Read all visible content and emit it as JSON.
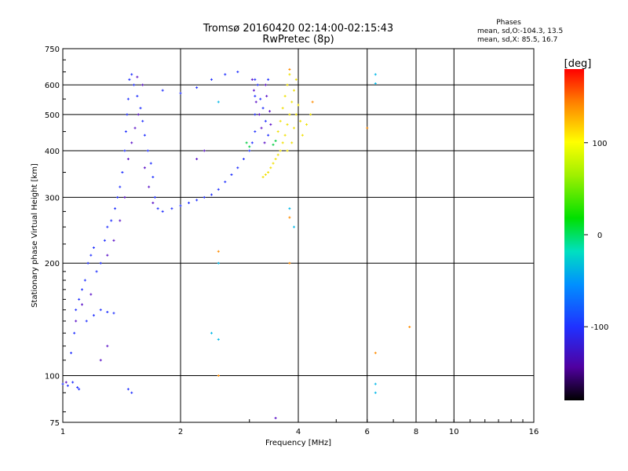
{
  "chart_data": {
    "type": "scatter",
    "title": "Tromsø 20160420 02:14:00-02:15:43",
    "subtitle": "RwPretec (8p)",
    "xlabel": "Frequency [MHz]",
    "ylabel": "Stationary phase Virtual Height [km]",
    "x_scale": "log",
    "y_scale": "log",
    "xlim": [
      1,
      16
    ],
    "ylim": [
      75,
      750
    ],
    "x_ticks": [
      "1",
      "2",
      "4",
      "6",
      "8",
      "10",
      "16"
    ],
    "y_ticks": [
      "75",
      "100",
      "200",
      "300",
      "400",
      "500",
      "600",
      "750"
    ],
    "grid": true,
    "phases_box": {
      "title": "Phases",
      "line_o": "mean, sd,O:-104.3, 13.5",
      "line_x": "mean, sd,X:  85.5, 16.7"
    },
    "colorbar": {
      "label": "[deg]",
      "ticks": [
        "100",
        "0",
        "-100"
      ],
      "range": [
        -180,
        180
      ]
    },
    "series": [
      {
        "phase_deg": -110,
        "color": "#2030ff",
        "points": [
          [
            1.0,
            95
          ],
          [
            1.03,
            94
          ],
          [
            1.06,
            96
          ],
          [
            1.09,
            93
          ],
          [
            1.1,
            92
          ],
          [
            1.05,
            115
          ],
          [
            1.07,
            130
          ],
          [
            1.08,
            150
          ],
          [
            1.1,
            160
          ],
          [
            1.12,
            170
          ],
          [
            1.14,
            180
          ],
          [
            1.16,
            200
          ],
          [
            1.18,
            210
          ],
          [
            1.2,
            220
          ],
          [
            1.15,
            140
          ],
          [
            1.2,
            145
          ],
          [
            1.25,
            150
          ],
          [
            1.3,
            148
          ],
          [
            1.35,
            147
          ],
          [
            1.22,
            190
          ],
          [
            1.25,
            200
          ],
          [
            1.28,
            230
          ],
          [
            1.3,
            250
          ],
          [
            1.33,
            260
          ],
          [
            1.36,
            280
          ],
          [
            1.38,
            300
          ],
          [
            1.4,
            320
          ],
          [
            1.42,
            350
          ],
          [
            1.44,
            400
          ],
          [
            1.45,
            450
          ],
          [
            1.46,
            500
          ],
          [
            1.47,
            550
          ],
          [
            1.48,
            620
          ],
          [
            1.5,
            640
          ],
          [
            1.52,
            600
          ],
          [
            1.55,
            560
          ],
          [
            1.58,
            520
          ],
          [
            1.6,
            480
          ],
          [
            1.62,
            440
          ],
          [
            1.65,
            400
          ],
          [
            1.68,
            370
          ],
          [
            1.7,
            340
          ],
          [
            1.72,
            300
          ],
          [
            1.75,
            280
          ],
          [
            1.8,
            275
          ],
          [
            1.9,
            280
          ],
          [
            2.0,
            285
          ],
          [
            2.1,
            290
          ],
          [
            2.2,
            295
          ],
          [
            2.3,
            300
          ],
          [
            2.4,
            305
          ],
          [
            2.5,
            315
          ],
          [
            2.6,
            330
          ],
          [
            2.7,
            345
          ],
          [
            2.8,
            360
          ],
          [
            2.9,
            380
          ],
          [
            3.0,
            400
          ],
          [
            3.05,
            420
          ],
          [
            3.1,
            450
          ],
          [
            3.1,
            500
          ],
          [
            3.1,
            560
          ],
          [
            3.1,
            620
          ],
          [
            3.15,
            600
          ],
          [
            3.2,
            550
          ],
          [
            3.25,
            520
          ],
          [
            3.3,
            480
          ],
          [
            3.35,
            440
          ],
          [
            3.35,
            620
          ],
          [
            1.8,
            580
          ],
          [
            2.0,
            570
          ],
          [
            2.2,
            590
          ],
          [
            2.4,
            620
          ],
          [
            2.6,
            640
          ],
          [
            2.8,
            650
          ],
          [
            1.47,
            92
          ],
          [
            1.5,
            90
          ]
        ]
      },
      {
        "phase_deg": -140,
        "color": "#5a10c8",
        "points": [
          [
            1.02,
            96
          ],
          [
            1.08,
            140
          ],
          [
            1.12,
            155
          ],
          [
            1.18,
            165
          ],
          [
            1.3,
            210
          ],
          [
            1.35,
            230
          ],
          [
            1.4,
            260
          ],
          [
            1.44,
            300
          ],
          [
            1.47,
            380
          ],
          [
            1.5,
            420
          ],
          [
            1.53,
            460
          ],
          [
            1.56,
            500
          ],
          [
            1.6,
            600
          ],
          [
            1.55,
            630
          ],
          [
            1.62,
            360
          ],
          [
            1.66,
            320
          ],
          [
            1.7,
            290
          ],
          [
            3.05,
            620
          ],
          [
            3.08,
            580
          ],
          [
            3.12,
            540
          ],
          [
            3.18,
            500
          ],
          [
            3.22,
            460
          ],
          [
            3.28,
            420
          ],
          [
            3.3,
            600
          ],
          [
            3.32,
            560
          ],
          [
            3.38,
            510
          ],
          [
            3.4,
            470
          ],
          [
            2.2,
            380
          ],
          [
            2.3,
            400
          ],
          [
            1.3,
            120
          ],
          [
            1.25,
            110
          ],
          [
            3.5,
            77
          ]
        ]
      },
      {
        "phase_deg": 90,
        "color": "#f0e000",
        "points": [
          [
            3.25,
            340
          ],
          [
            3.3,
            345
          ],
          [
            3.35,
            350
          ],
          [
            3.4,
            360
          ],
          [
            3.45,
            370
          ],
          [
            3.5,
            380
          ],
          [
            3.55,
            390
          ],
          [
            3.6,
            400
          ],
          [
            3.65,
            420
          ],
          [
            3.7,
            440
          ],
          [
            3.75,
            470
          ],
          [
            3.8,
            500
          ],
          [
            3.85,
            540
          ],
          [
            3.9,
            580
          ],
          [
            3.95,
            620
          ],
          [
            3.8,
            640
          ],
          [
            3.75,
            600
          ],
          [
            3.7,
            560
          ],
          [
            3.65,
            520
          ],
          [
            3.6,
            480
          ],
          [
            3.55,
            450
          ],
          [
            3.9,
            460
          ],
          [
            3.95,
            500
          ],
          [
            4.0,
            530
          ],
          [
            4.05,
            480
          ],
          [
            4.1,
            440
          ],
          [
            4.2,
            470
          ],
          [
            4.3,
            500
          ],
          [
            3.85,
            420
          ],
          [
            3.75,
            400
          ]
        ]
      },
      {
        "phase_deg": 140,
        "color": "#ff8c00",
        "points": [
          [
            3.8,
            660
          ],
          [
            4.35,
            540
          ],
          [
            6.0,
            460
          ],
          [
            7.7,
            135
          ],
          [
            6.3,
            115
          ],
          [
            2.5,
            215
          ],
          [
            3.8,
            200
          ],
          [
            3.8,
            265
          ],
          [
            2.5,
            100
          ]
        ]
      },
      {
        "phase_deg": -40,
        "color": "#00b8e8",
        "points": [
          [
            6.3,
            640
          ],
          [
            6.3,
            605
          ],
          [
            6.3,
            95
          ],
          [
            6.3,
            90
          ],
          [
            2.5,
            540
          ],
          [
            2.5,
            200
          ],
          [
            2.5,
            125
          ],
          [
            2.4,
            130
          ],
          [
            3.8,
            280
          ],
          [
            3.9,
            250
          ]
        ]
      },
      {
        "phase_deg": 20,
        "color": "#00cc40",
        "points": [
          [
            2.95,
            420
          ],
          [
            3.0,
            410
          ],
          [
            3.45,
            415
          ],
          [
            3.5,
            425
          ]
        ]
      }
    ]
  }
}
